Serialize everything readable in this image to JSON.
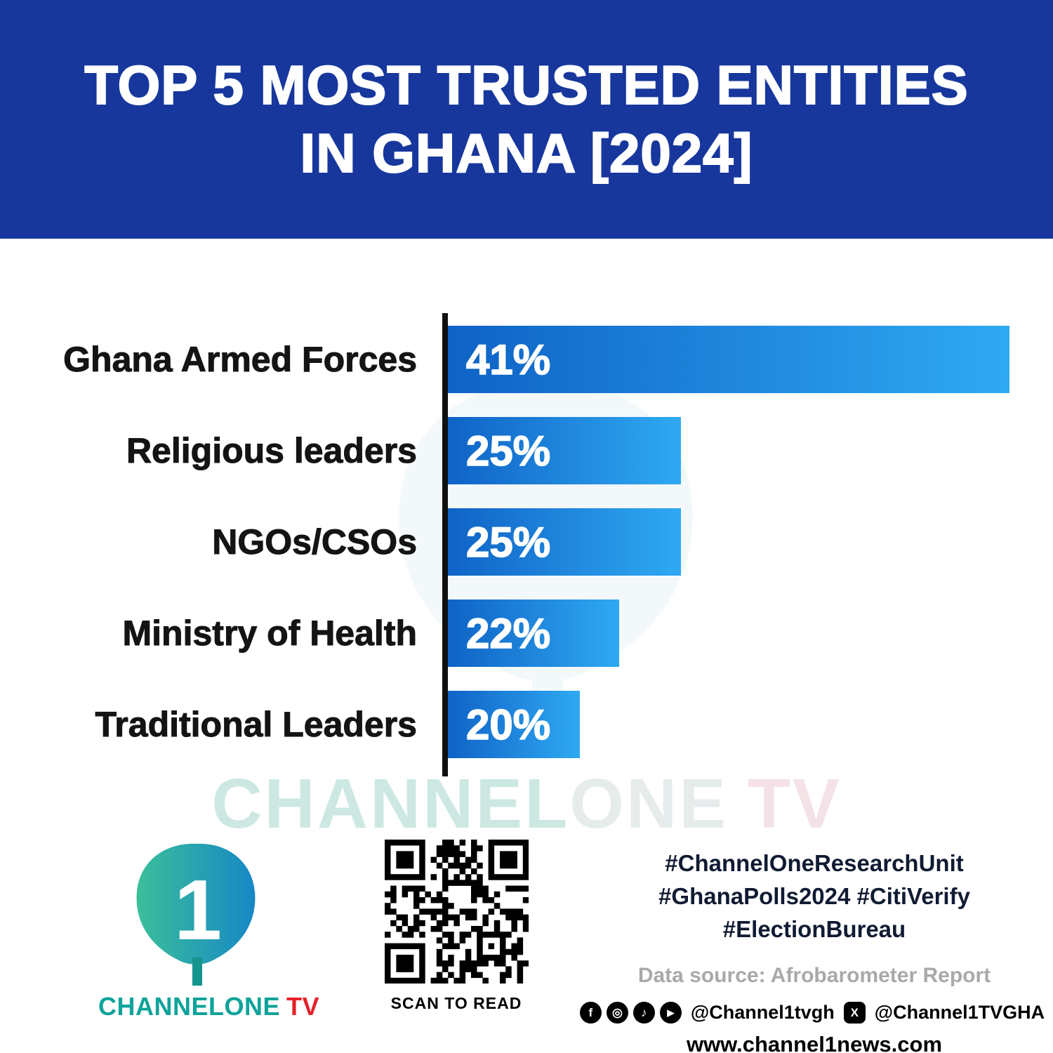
{
  "header": {
    "title_line1": "TOP 5 MOST TRUSTED ENTITIES",
    "title_line2": "IN GHANA [2024]"
  },
  "chart_data": {
    "type": "bar",
    "orientation": "horizontal",
    "title": "TOP 5 MOST TRUSTED ENTITIES IN GHANA [2024]",
    "categories": [
      "Ghana Armed Forces",
      "Religious leaders",
      "NGOs/CSOs",
      "Ministry of Health",
      "Traditional Leaders"
    ],
    "values": [
      41,
      25,
      25,
      22,
      20
    ],
    "value_labels": [
      "41%",
      "25%",
      "25%",
      "22%",
      "20%"
    ],
    "unit": "%",
    "xlim": [
      0,
      41
    ],
    "grid": false,
    "legend": false,
    "bar_render_widths_pct": [
      100,
      41.5,
      41.5,
      30.5,
      23.5
    ]
  },
  "watermark": {
    "part1": "CHANNEL",
    "part2": "ONE",
    "part3": "TV"
  },
  "footer": {
    "logo": {
      "brand": "CHANNELONE",
      "tv": "TV",
      "numeral": "1"
    },
    "qr_caption": "SCAN TO READ",
    "hashtags": [
      "#ChannelOneResearchUnit",
      "#GhanaPolls2024 #CitiVerify",
      "#ElectionBureau"
    ],
    "data_source": "Data source: Afrobarometer Report",
    "social_icons": [
      {
        "name": "facebook-icon",
        "glyph": "f"
      },
      {
        "name": "instagram-icon",
        "glyph": "◎"
      },
      {
        "name": "tiktok-icon",
        "glyph": "♪"
      },
      {
        "name": "youtube-icon",
        "glyph": "▶"
      }
    ],
    "x_icon": {
      "name": "x-icon",
      "glyph": "X"
    },
    "handle1": "@Channel1tvgh",
    "handle2": "@Channel1TVGHA",
    "website": "www.channel1news.com"
  },
  "colors": {
    "header_bg": "#17379d",
    "bar_gradient_start": "#0f63c6",
    "bar_gradient_end": "#2fa9f2",
    "axis_black": "#101010",
    "brand_teal": "#0fa39a",
    "brand_red": "#e62129",
    "hashtag_navy": "#101b33",
    "muted_gray": "#a9a9a9"
  }
}
